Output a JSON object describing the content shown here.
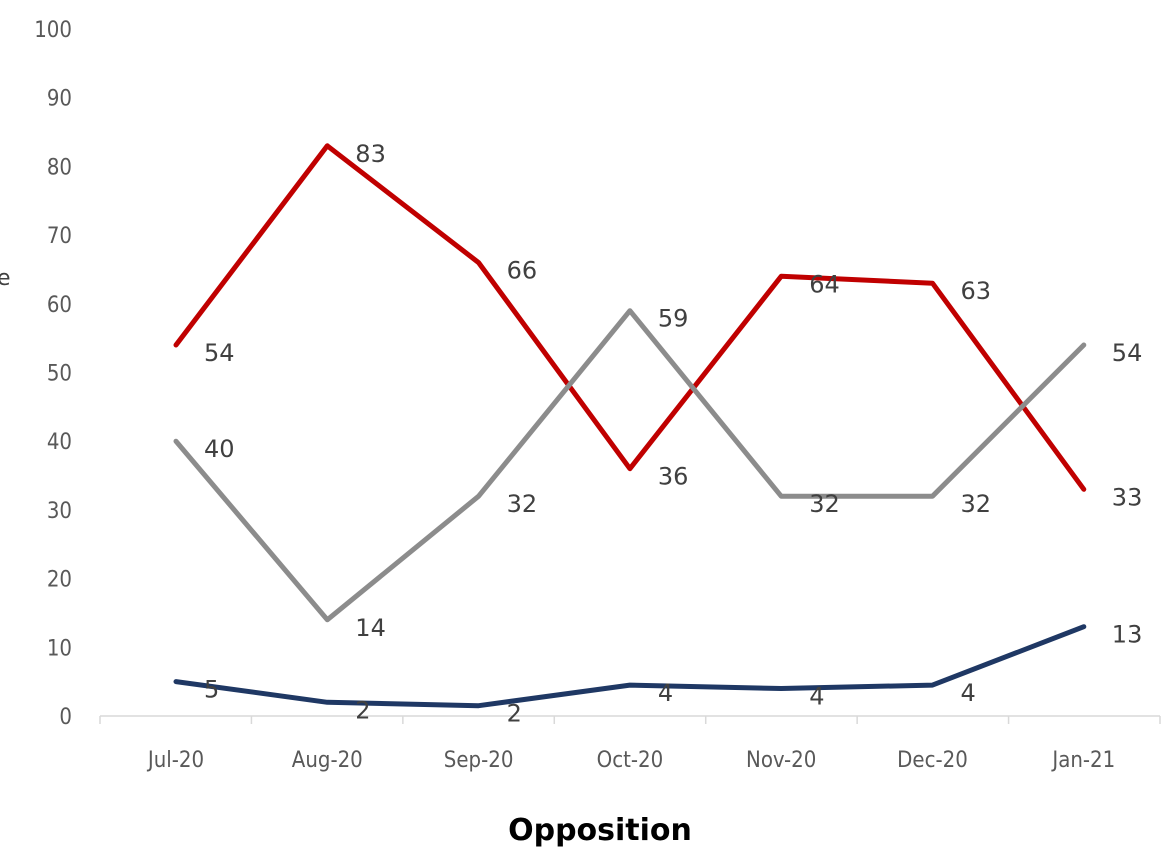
{
  "chart_data": {
    "type": "line",
    "title": "",
    "xlabel": "Opposition",
    "ylabel": "e",
    "categories": [
      "Jul-20",
      "Aug-20",
      "Sep-20",
      "Oct-20",
      "Nov-20",
      "Dec-20",
      "Jan-21"
    ],
    "ylim": [
      0,
      100
    ],
    "yticks": [
      "0",
      "10",
      "20",
      "30",
      "40",
      "50",
      "60",
      "70",
      "80",
      "90",
      "100"
    ],
    "grid": false,
    "legend": "none",
    "series": [
      {
        "color": "#c00000",
        "values": [
          54,
          83,
          66,
          36,
          64,
          63,
          33
        ],
        "labels": [
          "54",
          "83",
          "66",
          "36",
          "64",
          "63",
          "33"
        ]
      },
      {
        "color": "#8c8c8c",
        "values": [
          40,
          14,
          32,
          59,
          32,
          32,
          54
        ],
        "labels": [
          "40",
          "14",
          "32",
          "59",
          "32",
          "32",
          "54"
        ]
      },
      {
        "color": "#1f3864",
        "values": [
          5,
          2,
          1.5,
          4.5,
          4,
          4.5,
          13
        ],
        "labels": [
          "5",
          "2",
          "2",
          "4",
          "4",
          "4",
          "13"
        ]
      }
    ]
  }
}
